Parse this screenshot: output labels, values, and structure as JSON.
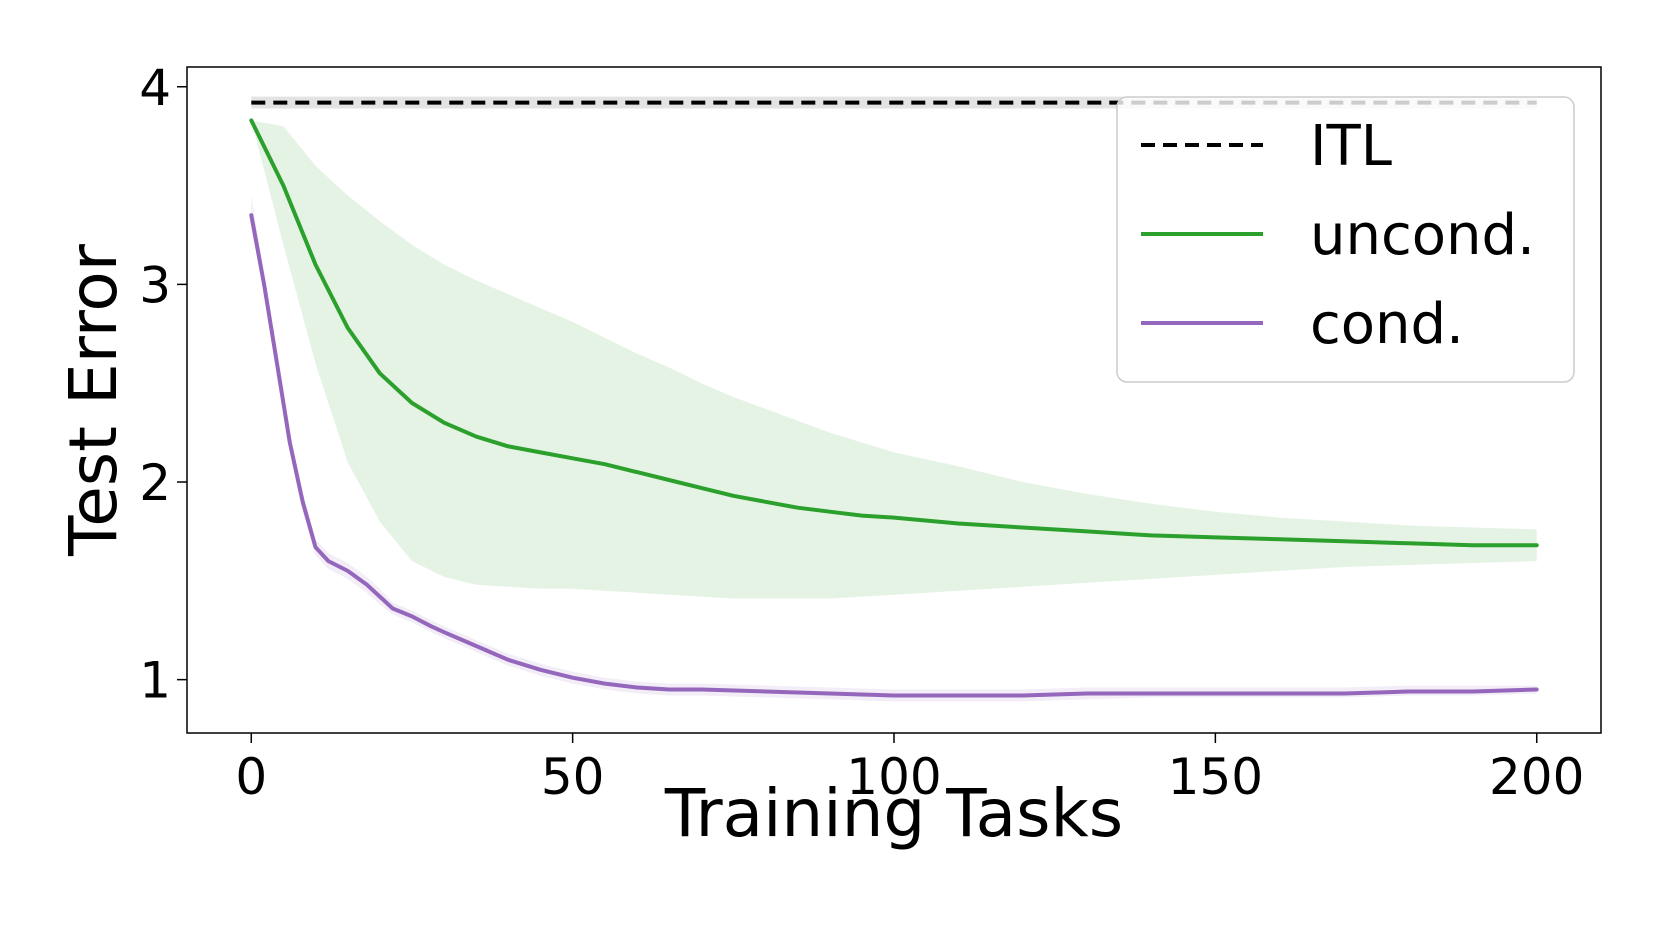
{
  "chart_data": {
    "type": "line",
    "title": "",
    "xlabel": "Training Tasks",
    "ylabel": "Test Error",
    "xlim": [
      -10,
      210
    ],
    "ylim": [
      0.73,
      4.1
    ],
    "xticks": [
      0,
      50,
      100,
      150,
      200
    ],
    "xtick_labels": [
      "0",
      "50",
      "100",
      "150",
      "200"
    ],
    "yticks": [
      1,
      2,
      3,
      4
    ],
    "ytick_labels": [
      "1",
      "2",
      "3",
      "4"
    ],
    "grid": false,
    "legend_position": "top-right",
    "series": [
      {
        "name": "ITL",
        "color": "#000000",
        "style": "dashed",
        "x": [
          0,
          200
        ],
        "y": [
          3.92,
          3.92
        ],
        "band_lower": [
          3.89,
          3.89
        ],
        "band_upper": [
          3.95,
          3.95
        ],
        "band_color": "#b0b0b0"
      },
      {
        "name": "uncond.",
        "color": "#2ca02c",
        "style": "solid",
        "x": [
          0,
          5,
          10,
          15,
          20,
          25,
          30,
          35,
          40,
          45,
          50,
          55,
          60,
          65,
          70,
          75,
          80,
          85,
          90,
          95,
          100,
          110,
          120,
          130,
          140,
          150,
          160,
          170,
          180,
          190,
          200
        ],
        "y": [
          3.83,
          3.5,
          3.1,
          2.78,
          2.55,
          2.4,
          2.3,
          2.23,
          2.18,
          2.15,
          2.12,
          2.09,
          2.05,
          2.01,
          1.97,
          1.93,
          1.9,
          1.87,
          1.85,
          1.83,
          1.82,
          1.79,
          1.77,
          1.75,
          1.73,
          1.72,
          1.71,
          1.7,
          1.69,
          1.68,
          1.68
        ],
        "band_lower": [
          3.83,
          3.2,
          2.6,
          2.1,
          1.8,
          1.6,
          1.52,
          1.48,
          1.47,
          1.46,
          1.46,
          1.45,
          1.44,
          1.43,
          1.42,
          1.41,
          1.41,
          1.41,
          1.41,
          1.42,
          1.43,
          1.45,
          1.47,
          1.49,
          1.51,
          1.53,
          1.55,
          1.57,
          1.58,
          1.59,
          1.6
        ],
        "band_upper": [
          3.83,
          3.8,
          3.6,
          3.45,
          3.32,
          3.2,
          3.1,
          3.02,
          2.95,
          2.88,
          2.81,
          2.73,
          2.65,
          2.58,
          2.5,
          2.43,
          2.37,
          2.31,
          2.25,
          2.2,
          2.15,
          2.08,
          2.0,
          1.94,
          1.89,
          1.85,
          1.82,
          1.8,
          1.78,
          1.77,
          1.76
        ],
        "band_color": "#2ca02c"
      },
      {
        "name": "cond.",
        "color": "#9467bd",
        "style": "solid",
        "x": [
          0,
          2,
          4,
          6,
          8,
          10,
          12,
          15,
          18,
          20,
          22,
          25,
          28,
          30,
          35,
          40,
          45,
          50,
          55,
          60,
          65,
          70,
          80,
          90,
          100,
          110,
          120,
          130,
          140,
          150,
          160,
          170,
          180,
          190,
          200
        ],
        "y": [
          3.35,
          3.0,
          2.6,
          2.2,
          1.9,
          1.67,
          1.6,
          1.55,
          1.48,
          1.42,
          1.36,
          1.32,
          1.27,
          1.24,
          1.17,
          1.1,
          1.05,
          1.01,
          0.98,
          0.96,
          0.95,
          0.95,
          0.94,
          0.93,
          0.92,
          0.92,
          0.92,
          0.93,
          0.93,
          0.93,
          0.93,
          0.93,
          0.94,
          0.94,
          0.95
        ],
        "band_lower": [
          3.3,
          2.95,
          2.55,
          2.15,
          1.85,
          1.63,
          1.56,
          1.51,
          1.44,
          1.38,
          1.33,
          1.29,
          1.24,
          1.21,
          1.14,
          1.07,
          1.02,
          0.98,
          0.95,
          0.93,
          0.92,
          0.92,
          0.91,
          0.9,
          0.89,
          0.89,
          0.89,
          0.9,
          0.91,
          0.91,
          0.91,
          0.91,
          0.92,
          0.92,
          0.93
        ],
        "band_upper": [
          3.45,
          3.05,
          2.65,
          2.25,
          1.95,
          1.71,
          1.64,
          1.59,
          1.52,
          1.46,
          1.39,
          1.35,
          1.3,
          1.27,
          1.2,
          1.13,
          1.08,
          1.04,
          1.01,
          0.99,
          0.98,
          0.98,
          0.97,
          0.96,
          0.95,
          0.95,
          0.95,
          0.96,
          0.96,
          0.96,
          0.96,
          0.96,
          0.97,
          0.97,
          0.97
        ],
        "band_color": "#9467bd"
      }
    ]
  }
}
